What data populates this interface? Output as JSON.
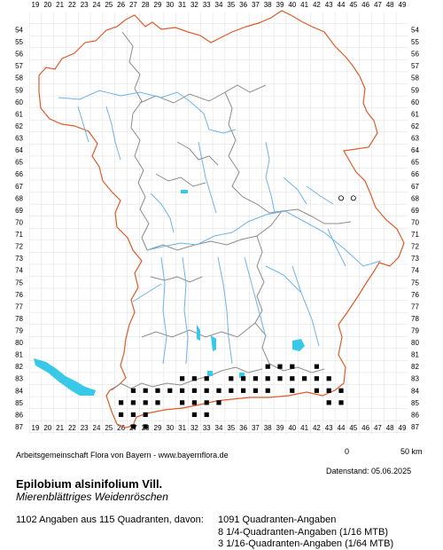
{
  "map": {
    "x_ticks": [
      "19",
      "20",
      "21",
      "22",
      "23",
      "24",
      "25",
      "26",
      "27",
      "28",
      "29",
      "30",
      "31",
      "32",
      "33",
      "34",
      "35",
      "36",
      "37",
      "38",
      "39",
      "40",
      "41",
      "42",
      "43",
      "44",
      "45",
      "46",
      "47",
      "48",
      "49"
    ],
    "y_ticks": [
      "54",
      "55",
      "56",
      "57",
      "58",
      "59",
      "60",
      "61",
      "62",
      "63",
      "64",
      "65",
      "66",
      "67",
      "68",
      "69",
      "70",
      "71",
      "72",
      "73",
      "74",
      "75",
      "76",
      "77",
      "78",
      "79",
      "80",
      "81",
      "82",
      "83",
      "84",
      "85",
      "86",
      "87"
    ],
    "colors": {
      "state_border": "#e05a2b",
      "district_border": "#8c8c8c",
      "rivers": "#6fb3e8",
      "lakes": "#38c8e8",
      "grid": "#dcdcdc",
      "occurrence": "#000000"
    },
    "occurrence_squares": [
      [
        68,
        44
      ],
      [
        68,
        45
      ],
      [
        82,
        38
      ],
      [
        82,
        39
      ],
      [
        82,
        40
      ],
      [
        82,
        42
      ],
      [
        83,
        31
      ],
      [
        83,
        32
      ],
      [
        83,
        33
      ],
      [
        83,
        35
      ],
      [
        83,
        36
      ],
      [
        83,
        37
      ],
      [
        83,
        38
      ],
      [
        83,
        39
      ],
      [
        83,
        40
      ],
      [
        83,
        41
      ],
      [
        83,
        42
      ],
      [
        83,
        43
      ],
      [
        84,
        27
      ],
      [
        84,
        28
      ],
      [
        84,
        29
      ],
      [
        84,
        30
      ],
      [
        84,
        31
      ],
      [
        84,
        32
      ],
      [
        84,
        33
      ],
      [
        84,
        34
      ],
      [
        84,
        35
      ],
      [
        84,
        36
      ],
      [
        84,
        37
      ],
      [
        84,
        38
      ],
      [
        84,
        40
      ],
      [
        84,
        42
      ],
      [
        84,
        43
      ],
      [
        84,
        44
      ],
      [
        85,
        26
      ],
      [
        85,
        27
      ],
      [
        85,
        28
      ],
      [
        85,
        29
      ],
      [
        85,
        31
      ],
      [
        85,
        32
      ],
      [
        85,
        33
      ],
      [
        85,
        34
      ],
      [
        85,
        43
      ],
      [
        85,
        44
      ],
      [
        86,
        26
      ],
      [
        86,
        27
      ],
      [
        86,
        28
      ],
      [
        86,
        32
      ],
      [
        86,
        33
      ],
      [
        87,
        27
      ],
      [
        87,
        28
      ]
    ],
    "scale_bar": {
      "start_label": "0",
      "end_label": "50 km"
    }
  },
  "credit": "Arbeitsgemeinschaft Flora von Bayern - www.bayernflora.de",
  "date": "Datenstand: 05.06.2025",
  "species": {
    "scientific_name": "Epilobium alsinifolium Vill.",
    "common_name": "Mierenblättriges Weidenröschen"
  },
  "stats": {
    "summary": "1102 Angaben aus 115 Quadranten, davon:",
    "lines": [
      "1091 Quadranten-Angaben",
      "8 1/4-Quadranten-Angaben (1/16 MTB)",
      "3 1/16-Quadranten-Angaben (1/64 MTB)"
    ]
  }
}
